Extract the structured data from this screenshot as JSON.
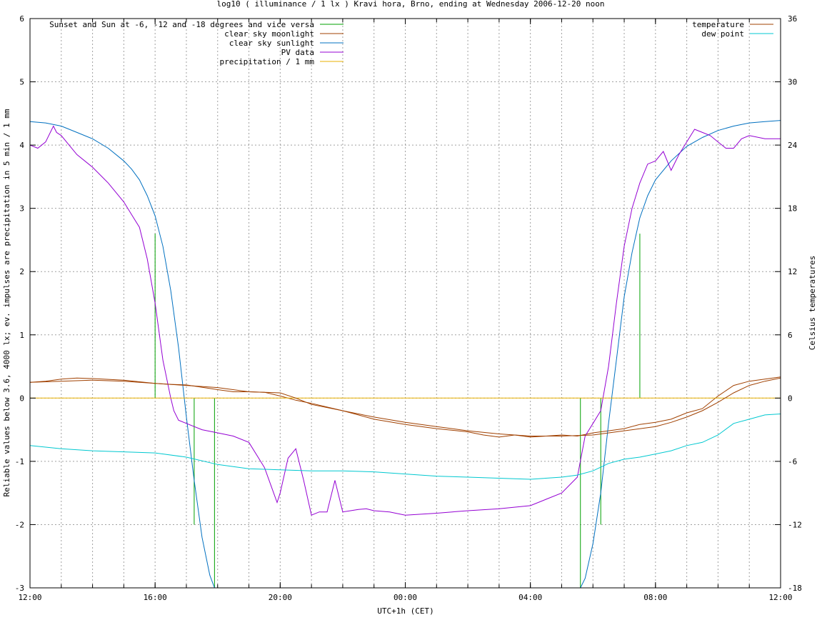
{
  "chart_data": {
    "type": "line",
    "title": "log10 ( illuminance / 1 lx ) Kravi hora, Brno, ending at Wednesday 2006-12-20 noon",
    "xlabel": "UTC+1h (CET)",
    "ylabel": "Reliable values below 3.6, 4000 lx; ev. impulses are precipitation in 5 min / 1 mm",
    "y2label": "Celsius temperatures",
    "x_unit": "hours from 12:00",
    "xlim": [
      0,
      24
    ],
    "ylim": [
      -3,
      6
    ],
    "y2lim": [
      -18,
      36
    ],
    "x_ticks": [
      {
        "x": 0,
        "label": "12:00"
      },
      {
        "x": 4,
        "label": "16:00"
      },
      {
        "x": 8,
        "label": "20:00"
      },
      {
        "x": 12,
        "label": "00:00"
      },
      {
        "x": 16,
        "label": "04:00"
      },
      {
        "x": 20,
        "label": "08:00"
      },
      {
        "x": 24,
        "label": "12:00"
      }
    ],
    "y_ticks": [
      "-3",
      "-2",
      "-1",
      "0",
      "1",
      "2",
      "3",
      "4",
      "5",
      "6"
    ],
    "y2_ticks": [
      "-18",
      "-12",
      "-6",
      "0",
      "6",
      "12",
      "18",
      "24",
      "30",
      "36"
    ],
    "grid": true,
    "legend_left_placement": "top-left",
    "legend_right_placement": "top-right",
    "series": [
      {
        "name": "Sunset and Sun at -6, -12 and -18 degrees and vice versa",
        "color": "#00a000",
        "style": "impulses",
        "impulses": [
          {
            "x": 4.0,
            "y": 2.6
          },
          {
            "x": 5.25,
            "y": -2.0
          },
          {
            "x": 5.9,
            "y": -3.0
          },
          {
            "x": 17.6,
            "y": -3.0
          },
          {
            "x": 18.25,
            "y": -2.0
          },
          {
            "x": 19.5,
            "y": 2.6
          }
        ]
      },
      {
        "name": "clear sky moonlight",
        "color": "#a04000",
        "axis": "right",
        "x": [
          0,
          0.5,
          1,
          1.5,
          2,
          3,
          4,
          4.5,
          5,
          6,
          6.5,
          7,
          7.5,
          8,
          8.5,
          9,
          10,
          10.5,
          11,
          12,
          13,
          14,
          14.5,
          15,
          15.5,
          16,
          16.5,
          17,
          17.5,
          18,
          18.5,
          19,
          19.5,
          20,
          20.5,
          21,
          21.5,
          22,
          22.5,
          23,
          23.5,
          24
        ],
        "y": [
          1.5,
          1.6,
          1.8,
          1.9,
          1.85,
          1.7,
          1.4,
          1.3,
          1.25,
          0.8,
          0.6,
          0.6,
          0.55,
          0.2,
          -0.2,
          -0.5,
          -1.2,
          -1.6,
          -2.0,
          -2.5,
          -2.9,
          -3.2,
          -3.5,
          -3.7,
          -3.5,
          -3.7,
          -3.6,
          -3.5,
          -3.6,
          -3.3,
          -3.1,
          -2.9,
          -2.5,
          -2.3,
          -2.0,
          -1.4,
          -1.0,
          0.2,
          1.2,
          1.6,
          1.8,
          2.0
        ]
      },
      {
        "name": "clear sky sunlight",
        "color": "#0070c0",
        "x": [
          0,
          0.5,
          1,
          1.5,
          2,
          2.5,
          3,
          3.25,
          3.5,
          3.75,
          4,
          4.25,
          4.5,
          4.75,
          5,
          5.25,
          5.5,
          5.75,
          5.9,
          17.6,
          17.75,
          18.0,
          18.25,
          18.5,
          18.75,
          19.0,
          19.25,
          19.5,
          19.75,
          20.0,
          20.5,
          21,
          21.5,
          22,
          22.5,
          23,
          23.5,
          24
        ],
        "y": [
          4.37,
          4.35,
          4.3,
          4.2,
          4.1,
          3.95,
          3.75,
          3.62,
          3.45,
          3.2,
          2.88,
          2.4,
          1.7,
          0.8,
          -0.3,
          -1.3,
          -2.2,
          -2.8,
          -3.0,
          -3.0,
          -2.85,
          -2.3,
          -1.5,
          -0.4,
          0.6,
          1.6,
          2.3,
          2.85,
          3.2,
          3.45,
          3.75,
          3.98,
          4.12,
          4.23,
          4.3,
          4.35,
          4.37,
          4.39
        ]
      },
      {
        "name": "PV data",
        "color": "#9400d3",
        "x": [
          0,
          0.25,
          0.5,
          0.75,
          0.85,
          1.0,
          1.25,
          1.5,
          2.0,
          2.5,
          3.0,
          3.25,
          3.5,
          3.75,
          4.0,
          4.25,
          4.5,
          4.6,
          4.75,
          5.0,
          5.5,
          6.0,
          6.5,
          7.0,
          7.5,
          7.9,
          8.0,
          8.25,
          8.5,
          8.75,
          9.0,
          9.25,
          9.5,
          9.75,
          10.0,
          10.25,
          10.5,
          10.75,
          11.0,
          11.5,
          12,
          13,
          13.5,
          14,
          15,
          16,
          16.5,
          17,
          17.5,
          17.75,
          18.0,
          18.25,
          18.5,
          18.75,
          19.0,
          19.25,
          19.5,
          19.75,
          20.0,
          20.25,
          20.5,
          20.75,
          21.0,
          21.25,
          21.5,
          21.75,
          22.0,
          22.25,
          22.5,
          22.75,
          23.0,
          23.5,
          24
        ],
        "y": [
          4.0,
          3.95,
          4.05,
          4.3,
          4.2,
          4.15,
          4.0,
          3.85,
          3.65,
          3.4,
          3.1,
          2.9,
          2.7,
          2.2,
          1.5,
          0.6,
          0.0,
          -0.2,
          -0.35,
          -0.4,
          -0.5,
          -0.55,
          -0.6,
          -0.7,
          -1.1,
          -1.65,
          -1.5,
          -0.95,
          -0.8,
          -1.3,
          -1.85,
          -1.8,
          -1.8,
          -1.3,
          -1.8,
          -1.78,
          -1.76,
          -1.75,
          -1.78,
          -1.8,
          -1.85,
          -1.82,
          -1.8,
          -1.78,
          -1.75,
          -1.7,
          -1.6,
          -1.5,
          -1.25,
          -0.6,
          -0.4,
          -0.2,
          0.5,
          1.5,
          2.4,
          3.0,
          3.4,
          3.7,
          3.75,
          3.9,
          3.6,
          3.85,
          4.05,
          4.25,
          4.2,
          4.15,
          4.05,
          3.95,
          3.95,
          4.1,
          4.15,
          4.1,
          4.1
        ]
      },
      {
        "name": "precipitation / 1 mm",
        "color": "#e8b000",
        "x": [
          0,
          24
        ],
        "y": [
          0,
          0
        ]
      },
      {
        "name": "temperature",
        "color": "#a04000",
        "axis": "right",
        "x": [
          0,
          1,
          2,
          3,
          4,
          5,
          6,
          7,
          8,
          8.5,
          9,
          10,
          11,
          12,
          13,
          14,
          15,
          16,
          17,
          18,
          19,
          20,
          20.5,
          21,
          21.5,
          22,
          22.5,
          23,
          23.5,
          24
        ],
        "y": [
          1.5,
          1.6,
          1.7,
          1.6,
          1.4,
          1.2,
          1.0,
          0.6,
          0.5,
          0.0,
          -0.6,
          -1.2,
          -1.8,
          -2.3,
          -2.7,
          -3.1,
          -3.4,
          -3.6,
          -3.6,
          -3.5,
          -3.1,
          -2.7,
          -2.3,
          -1.8,
          -1.2,
          -0.4,
          0.5,
          1.2,
          1.6,
          1.9
        ]
      },
      {
        "name": "dew point",
        "color": "#00c8d0",
        "axis": "right",
        "x": [
          0,
          1,
          2,
          3,
          4,
          5,
          6,
          7,
          8,
          9,
          10,
          11,
          12,
          13,
          14,
          15,
          16,
          17,
          17.5,
          18,
          18.5,
          19,
          19.5,
          20,
          20.5,
          21,
          21.5,
          22,
          22.5,
          23,
          23.5,
          24
        ],
        "y": [
          -4.5,
          -4.8,
          -5.0,
          -5.1,
          -5.2,
          -5.6,
          -6.3,
          -6.7,
          -6.8,
          -6.9,
          -6.9,
          -7.0,
          -7.2,
          -7.4,
          -7.5,
          -7.6,
          -7.7,
          -7.5,
          -7.3,
          -6.9,
          -6.2,
          -5.8,
          -5.6,
          -5.3,
          -5.0,
          -4.5,
          -4.2,
          -3.5,
          -2.4,
          -2.0,
          -1.6,
          -1.5
        ]
      }
    ]
  }
}
